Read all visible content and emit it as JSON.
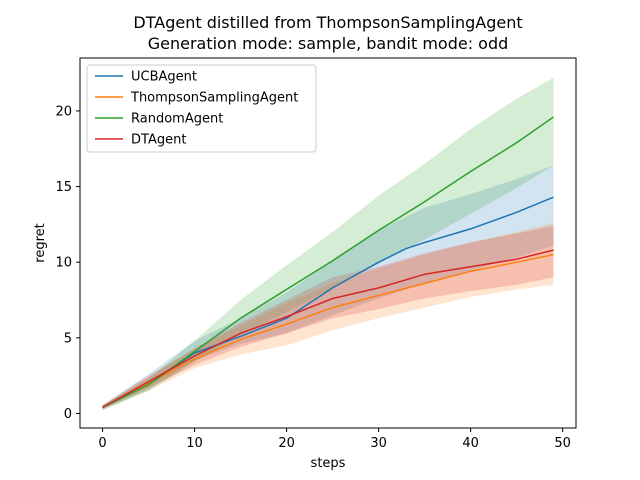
{
  "chart_data": {
    "type": "line",
    "title": "DTAgent distilled from ThompsonSamplingAgent",
    "subtitle": "Generation mode: sample, bandit mode: odd",
    "xlabel": "steps",
    "ylabel": "regret",
    "xlim": [
      -2.45,
      51.45
    ],
    "ylim": [
      -0.96,
      23.5
    ],
    "xticks": [
      0,
      10,
      20,
      30,
      40,
      50
    ],
    "yticks": [
      0,
      5,
      10,
      15,
      20
    ],
    "grid": false,
    "legend_position": "upper-left",
    "series": [
      {
        "name": "UCBAgent",
        "color": "#1f77b4",
        "x": [
          0,
          5,
          10,
          15,
          20,
          25,
          30,
          33,
          35,
          40,
          45,
          49
        ],
        "y": [
          0.4,
          2.0,
          4.0,
          5.1,
          6.3,
          8.3,
          10.0,
          10.9,
          11.3,
          12.2,
          13.3,
          14.3
        ],
        "lower": [
          0.25,
          1.6,
          3.5,
          4.6,
          5.3,
          6.5,
          7.6,
          8.2,
          8.6,
          9.4,
          10.3,
          11.1
        ],
        "upper": [
          0.55,
          2.6,
          4.8,
          6.3,
          8.0,
          10.1,
          12.1,
          13.0,
          13.6,
          14.5,
          15.5,
          16.4
        ]
      },
      {
        "name": "ThompsonSamplingAgent",
        "color": "#ff7f0e",
        "x": [
          0,
          5,
          10,
          15,
          20,
          25,
          30,
          35,
          40,
          45,
          49
        ],
        "y": [
          0.4,
          2.0,
          3.6,
          4.9,
          5.9,
          7.0,
          7.8,
          8.6,
          9.4,
          10.0,
          10.5
        ],
        "lower": [
          0.3,
          1.5,
          3.0,
          3.9,
          4.5,
          5.5,
          6.3,
          7.0,
          7.7,
          8.2,
          8.5
        ],
        "upper": [
          0.55,
          2.4,
          4.3,
          5.8,
          7.3,
          8.6,
          9.6,
          10.5,
          11.3,
          12.0,
          12.6
        ]
      },
      {
        "name": "RandomAgent",
        "color": "#2ca02c",
        "x": [
          0,
          5,
          10,
          15,
          20,
          25,
          30,
          35,
          40,
          45,
          49
        ],
        "y": [
          0.4,
          1.9,
          4.1,
          6.3,
          8.2,
          10.1,
          12.1,
          14.0,
          16.0,
          17.9,
          19.6
        ],
        "lower": [
          0.2,
          1.5,
          3.4,
          5.2,
          6.7,
          8.3,
          9.9,
          11.5,
          13.2,
          14.9,
          16.4
        ],
        "upper": [
          0.55,
          2.3,
          4.8,
          7.5,
          9.8,
          12.0,
          14.4,
          16.5,
          18.8,
          20.8,
          22.2
        ]
      },
      {
        "name": "DTAgent",
        "color": "#d62728",
        "x": [
          0,
          5,
          10,
          15,
          20,
          25,
          30,
          35,
          40,
          45,
          49
        ],
        "y": [
          0.4,
          2.1,
          3.8,
          5.3,
          6.4,
          7.6,
          8.3,
          9.2,
          9.7,
          10.2,
          10.8
        ],
        "lower": [
          0.3,
          1.7,
          3.2,
          4.4,
          5.3,
          6.3,
          6.9,
          7.6,
          8.1,
          8.5,
          9.0
        ],
        "upper": [
          0.55,
          2.5,
          4.3,
          6.0,
          7.5,
          9.0,
          9.7,
          10.6,
          11.3,
          11.9,
          12.4
        ]
      }
    ]
  }
}
